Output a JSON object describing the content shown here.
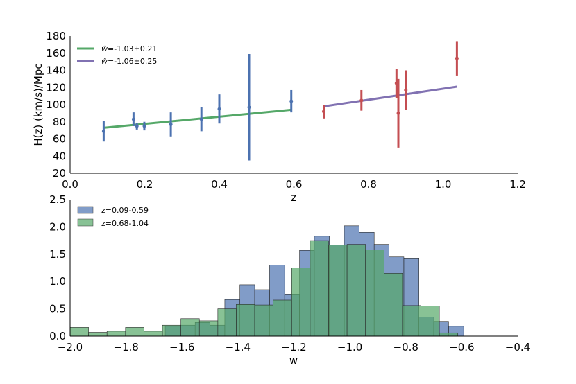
{
  "chart_data": [
    {
      "type": "scatter",
      "xlabel": "z",
      "ylabel": "H(z)  (km/s)/Mpc",
      "xlim": [
        0.0,
        1.2
      ],
      "ylim": [
        20,
        180
      ],
      "xticks": [
        "0.0",
        "0.2",
        "0.4",
        "0.6",
        "0.8",
        "1.0",
        "1.2"
      ],
      "yticks": [
        "20",
        "40",
        "60",
        "80",
        "100",
        "120",
        "140",
        "160",
        "180"
      ],
      "grid": false,
      "legend_position": "top-left",
      "data_series": [
        {
          "color": "#4c72b0",
          "points": [
            {
              "x": 0.09,
              "y": 69,
              "err": 12
            },
            {
              "x": 0.17,
              "y": 83,
              "err": 8
            },
            {
              "x": 0.179,
              "y": 75,
              "err": 4
            },
            {
              "x": 0.199,
              "y": 75,
              "err": 5
            },
            {
              "x": 0.27,
              "y": 77,
              "err": 14
            },
            {
              "x": 0.352,
              "y": 83,
              "err": 14
            },
            {
              "x": 0.4,
              "y": 95,
              "err": 17
            },
            {
              "x": 0.48,
              "y": 97,
              "err": 62
            },
            {
              "x": 0.593,
              "y": 104,
              "err": 13
            }
          ]
        },
        {
          "color": "#c44e52",
          "points": [
            {
              "x": 0.68,
              "y": 92,
              "err": 8
            },
            {
              "x": 0.781,
              "y": 105,
              "err": 12
            },
            {
              "x": 0.875,
              "y": 125,
              "err": 17
            },
            {
              "x": 0.88,
              "y": 90,
              "err": 40
            },
            {
              "x": 0.9,
              "y": 117,
              "err": 23
            },
            {
              "x": 1.037,
              "y": 154,
              "err": 20
            }
          ]
        }
      ],
      "fit_lines": [
        {
          "name": "$\\hat{w}$=-1.03$\\pm$0.21",
          "label_main": "=-1.03",
          "label_err": "0.21",
          "color": "#55a868",
          "x": [
            0.09,
            0.593
          ],
          "y": [
            73,
            94
          ]
        },
        {
          "name": "$\\hat{w}$=-1.06$\\pm$0.25",
          "label_main": "=-1.06",
          "label_err": "0.25",
          "color": "#8172b2",
          "x": [
            0.68,
            1.037
          ],
          "y": [
            98,
            121
          ]
        }
      ]
    },
    {
      "type": "bar",
      "subtype": "histogram",
      "xlabel": "w",
      "ylabel": "",
      "xlim": [
        -2.0,
        -0.4
      ],
      "ylim": [
        0.0,
        2.5
      ],
      "xticks": [
        "−2.0",
        "−1.8",
        "−1.6",
        "−1.4",
        "−1.2",
        "−1.0",
        "−0.8",
        "−0.6",
        "−0.4"
      ],
      "yticks": [
        "0.0",
        "0.5",
        "1.0",
        "1.5",
        "2.0",
        "2.5"
      ],
      "grid": false,
      "legend_position": "top-left",
      "series": [
        {
          "name": "z=0.09-0.59",
          "color": "#4c72b0",
          "bins": [
            {
              "x0": -1.66,
              "x1": -1.607,
              "y": 0.18
            },
            {
              "x0": -1.607,
              "x1": -1.553,
              "y": 0.2
            },
            {
              "x0": -1.553,
              "x1": -1.5,
              "y": 0.25
            },
            {
              "x0": -1.5,
              "x1": -1.447,
              "y": 0.2
            },
            {
              "x0": -1.447,
              "x1": -1.393,
              "y": 0.67
            },
            {
              "x0": -1.393,
              "x1": -1.34,
              "y": 0.94
            },
            {
              "x0": -1.34,
              "x1": -1.287,
              "y": 0.85
            },
            {
              "x0": -1.287,
              "x1": -1.233,
              "y": 1.3
            },
            {
              "x0": -1.233,
              "x1": -1.18,
              "y": 0.77
            },
            {
              "x0": -1.18,
              "x1": -1.127,
              "y": 1.57
            },
            {
              "x0": -1.127,
              "x1": -1.073,
              "y": 1.83
            },
            {
              "x0": -1.073,
              "x1": -1.02,
              "y": 1.67
            },
            {
              "x0": -1.02,
              "x1": -0.967,
              "y": 2.02
            },
            {
              "x0": -0.967,
              "x1": -0.913,
              "y": 1.9
            },
            {
              "x0": -0.913,
              "x1": -0.86,
              "y": 1.68
            },
            {
              "x0": -0.86,
              "x1": -0.807,
              "y": 1.45
            },
            {
              "x0": -0.807,
              "x1": -0.753,
              "y": 1.43
            },
            {
              "x0": -0.753,
              "x1": -0.7,
              "y": 0.35
            },
            {
              "x0": -0.7,
              "x1": -0.647,
              "y": 0.27
            },
            {
              "x0": -0.647,
              "x1": -0.593,
              "y": 0.18
            }
          ]
        },
        {
          "name": "z=0.68-1.04",
          "color": "#55a868",
          "bins": [
            {
              "x0": -2.0,
              "x1": -1.934,
              "y": 0.16
            },
            {
              "x0": -1.934,
              "x1": -1.868,
              "y": 0.07
            },
            {
              "x0": -1.868,
              "x1": -1.802,
              "y": 0.09
            },
            {
              "x0": -1.802,
              "x1": -1.736,
              "y": 0.16
            },
            {
              "x0": -1.736,
              "x1": -1.67,
              "y": 0.09
            },
            {
              "x0": -1.67,
              "x1": -1.604,
              "y": 0.2
            },
            {
              "x0": -1.604,
              "x1": -1.538,
              "y": 0.32
            },
            {
              "x0": -1.538,
              "x1": -1.472,
              "y": 0.28
            },
            {
              "x0": -1.472,
              "x1": -1.406,
              "y": 0.5
            },
            {
              "x0": -1.406,
              "x1": -1.34,
              "y": 0.58
            },
            {
              "x0": -1.34,
              "x1": -1.274,
              "y": 0.57
            },
            {
              "x0": -1.274,
              "x1": -1.208,
              "y": 0.66
            },
            {
              "x0": -1.208,
              "x1": -1.142,
              "y": 1.25
            },
            {
              "x0": -1.142,
              "x1": -1.076,
              "y": 1.75
            },
            {
              "x0": -1.076,
              "x1": -1.01,
              "y": 1.67
            },
            {
              "x0": -1.01,
              "x1": -0.944,
              "y": 1.68
            },
            {
              "x0": -0.944,
              "x1": -0.878,
              "y": 1.58
            },
            {
              "x0": -0.878,
              "x1": -0.812,
              "y": 1.15
            },
            {
              "x0": -0.812,
              "x1": -0.746,
              "y": 0.56
            },
            {
              "x0": -0.746,
              "x1": -0.68,
              "y": 0.55
            },
            {
              "x0": -0.68,
              "x1": -0.614,
              "y": 0.06
            }
          ]
        }
      ]
    }
  ]
}
